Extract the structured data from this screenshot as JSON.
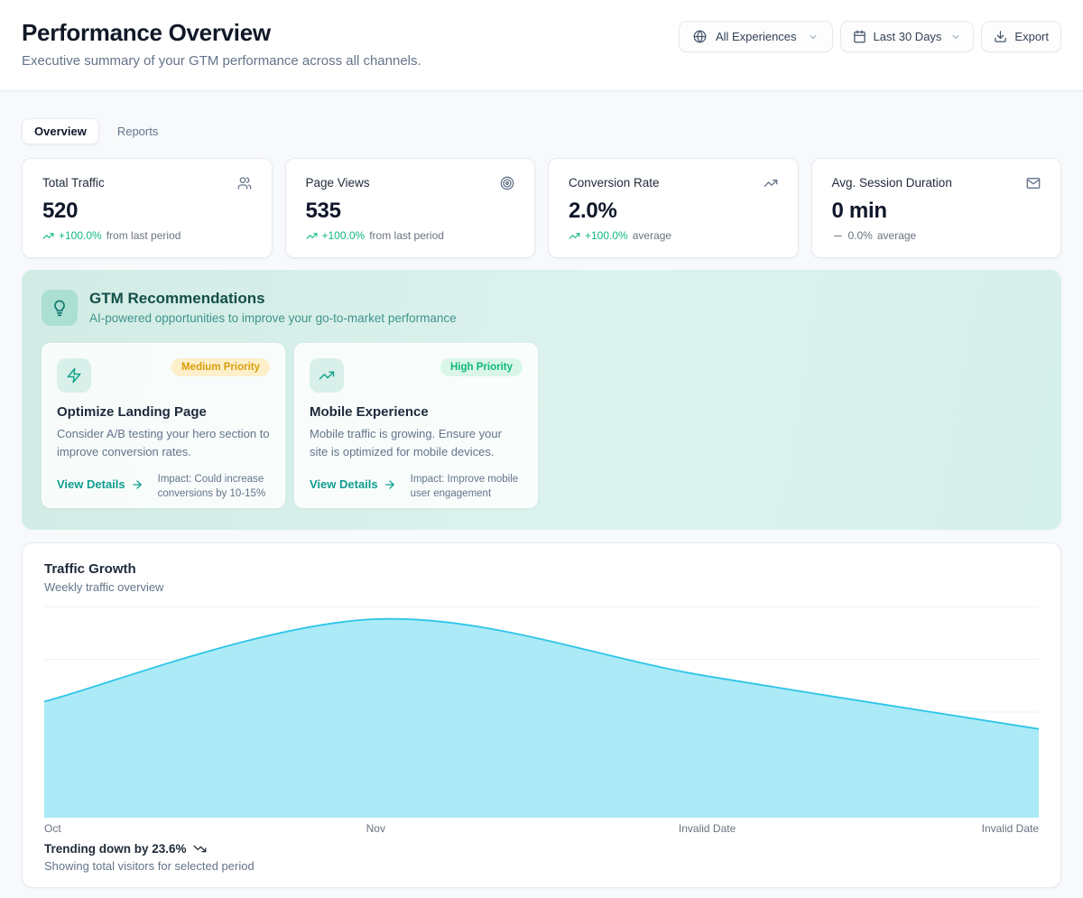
{
  "header": {
    "title": "Performance Overview",
    "subtitle": "Executive summary of your GTM performance across all channels.",
    "experience_filter": "All Experiences",
    "date_filter": "Last 30 Days",
    "export_label": "Export"
  },
  "tabs": {
    "overview": "Overview",
    "reports": "Reports",
    "active": "Overview"
  },
  "kpis": [
    {
      "label": "Total Traffic",
      "icon": "users-icon",
      "value": "520",
      "delta": "+100.0%",
      "note": "from last period",
      "trend": "up"
    },
    {
      "label": "Page Views",
      "icon": "target-icon",
      "value": "535",
      "delta": "+100.0%",
      "note": "from last period",
      "trend": "up"
    },
    {
      "label": "Conversion Rate",
      "icon": "trending-up-icon",
      "value": "2.0%",
      "delta": "+100.0%",
      "note": "average",
      "trend": "up"
    },
    {
      "label": "Avg. Session Duration",
      "icon": "mail-icon",
      "value": "0 min",
      "delta": "0.0%",
      "note": "average",
      "trend": "flat"
    }
  ],
  "recommendations": {
    "title": "GTM Recommendations",
    "subtitle": "AI-powered opportunities to improve your go-to-market performance",
    "cards": [
      {
        "icon": "zap-icon",
        "priority": "Medium Priority",
        "priority_level": "medium",
        "title": "Optimize Landing Page",
        "description": "Consider A/B testing your hero section to improve conversion rates.",
        "cta": "View Details",
        "impact": "Impact: Could increase conversions by 10-15%"
      },
      {
        "icon": "trending-up-icon",
        "priority": "High Priority",
        "priority_level": "high",
        "title": "Mobile Experience",
        "description": "Mobile traffic is growing. Ensure your site is optimized for mobile devices.",
        "cta": "View Details",
        "impact": "Impact: Improve mobile user engagement"
      }
    ]
  },
  "traffic": {
    "title": "Traffic Growth",
    "subtitle": "Weekly traffic overview",
    "trend_summary": "Trending down by 23.6%",
    "footnote": "Showing total visitors for selected period"
  },
  "chart_data": {
    "type": "area",
    "title": "Traffic Growth",
    "subtitle": "Weekly traffic overview",
    "x": [
      "Oct",
      "Nov",
      "Invalid Date",
      "Invalid Date"
    ],
    "series": [
      {
        "name": "Total visitors",
        "values": [
          55,
          94,
          67,
          42
        ]
      }
    ],
    "ylim": [
      0,
      100
    ],
    "y_axis_labels_visible": false,
    "grid": "horizontal",
    "legend": "none",
    "trend_summary": "Trending down by 23.6%",
    "footnote": "Showing total visitors for selected period",
    "colors": {
      "fill": "#a6e9f5",
      "stroke": "#2ec5e8",
      "gridline": "#eef2f6"
    }
  }
}
